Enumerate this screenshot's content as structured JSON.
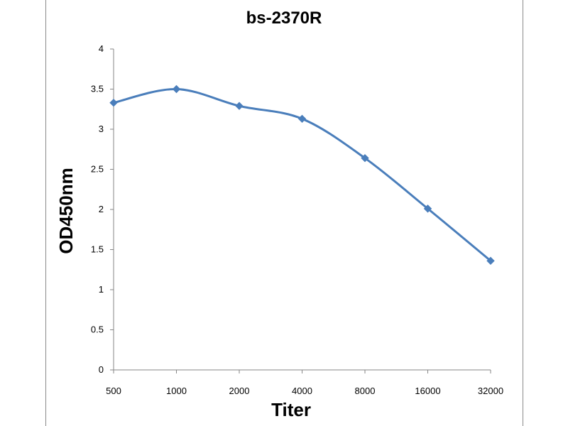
{
  "chart_data": {
    "type": "line",
    "title": "bs-2370R",
    "xlabel": "Titer",
    "ylabel": "OD450nm",
    "categories": [
      "500",
      "1000",
      "2000",
      "4000",
      "8000",
      "16000",
      "32000"
    ],
    "series": [
      {
        "values": [
          3.33,
          3.5,
          3.29,
          3.13,
          2.64,
          2.01,
          1.36
        ],
        "color": "#4a7ebb",
        "marker": "diamond"
      }
    ],
    "ylim": [
      0,
      4
    ],
    "yticks": [
      "0",
      "0.5",
      "1",
      "1.5",
      "2",
      "2.5",
      "3",
      "3.5",
      "4"
    ],
    "grid": false,
    "legend": "none",
    "smooth": true
  }
}
